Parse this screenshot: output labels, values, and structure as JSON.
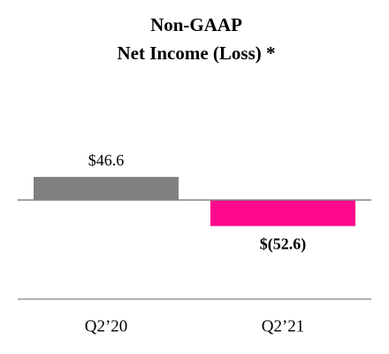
{
  "chart_data": {
    "type": "bar",
    "title": [
      "Non-GAAP",
      "Net Income (Loss) *"
    ],
    "categories": [
      "Q2’20",
      "Q2’21"
    ],
    "values": [
      46.6,
      -52.6
    ],
    "value_labels": [
      "$46.6",
      "$(52.6)"
    ],
    "colors": [
      "#808080",
      "#ff0a8c"
    ],
    "ylim": [
      -200,
      200
    ]
  }
}
